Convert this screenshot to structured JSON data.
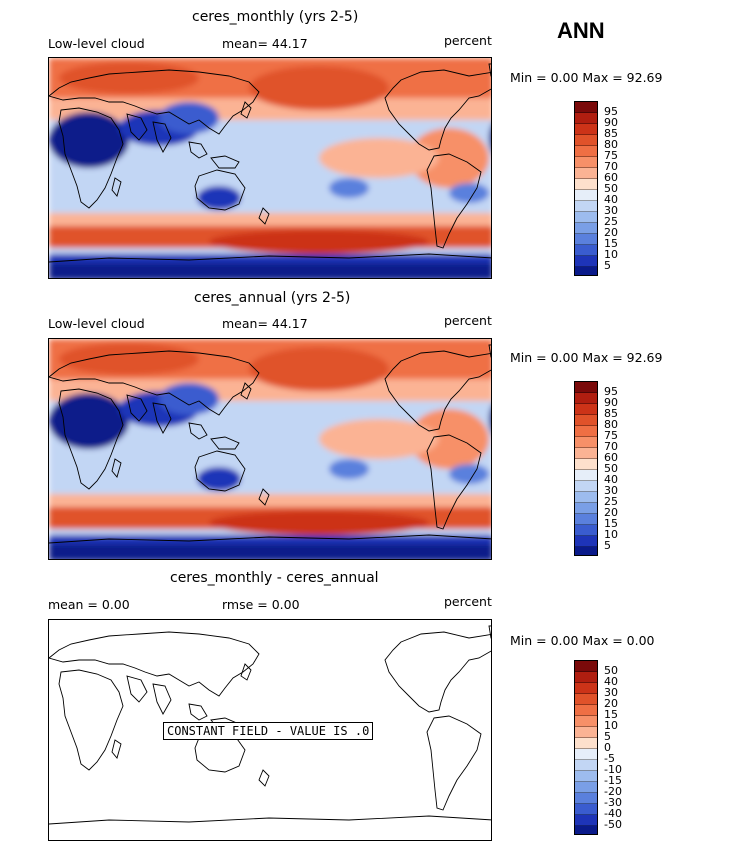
{
  "season": "ANN",
  "panels": [
    {
      "title": "ceres_monthly (yrs 2-5)",
      "left_label": "Low-level cloud",
      "center_label": "mean=  44.17",
      "right_label": "percent",
      "minmax": "Min =    0.00 Max =  92.69",
      "colorbar_ticks": [
        "95",
        "90",
        "85",
        "80",
        "75",
        "70",
        "60",
        "50",
        "40",
        "30",
        "25",
        "20",
        "15",
        "10",
        "5"
      ]
    },
    {
      "title": "ceres_annual (yrs 2-5)",
      "left_label": "Low-level cloud",
      "center_label": "mean=  44.17",
      "right_label": "percent",
      "minmax": "Min =    0.00 Max =  92.69",
      "colorbar_ticks": [
        "95",
        "90",
        "85",
        "80",
        "75",
        "70",
        "60",
        "50",
        "40",
        "30",
        "25",
        "20",
        "15",
        "10",
        "5"
      ]
    },
    {
      "title": "ceres_monthly - ceres_annual",
      "left_label": "mean =    0.00",
      "center_label": "rmse =    0.00",
      "right_label": "percent",
      "minmax": "Min =    0.00 Max =    0.00",
      "constant_note": "CONSTANT FIELD - VALUE IS .0",
      "colorbar_ticks": [
        "50",
        "40",
        "30",
        "20",
        "15",
        "10",
        "5",
        "0",
        "-5",
        "-10",
        "-15",
        "-20",
        "-30",
        "-40",
        "-50"
      ]
    }
  ],
  "colors": {
    "scale": [
      "#7a0a0a",
      "#b01e10",
      "#cc3318",
      "#e0522a",
      "#ef6f44",
      "#f79068",
      "#fbb394",
      "#fde0cc",
      "#e6eef9",
      "#c2d6f4",
      "#9dbcee",
      "#7a9fe6",
      "#5a80dd",
      "#3a5ccf",
      "#1e34b8",
      "#0a1a8a"
    ]
  }
}
